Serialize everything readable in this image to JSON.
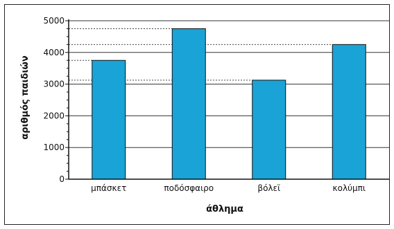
{
  "chart_data": {
    "type": "bar",
    "categories": [
      "μπάσκετ",
      "ποδόσφαιρο",
      "βόλεϊ",
      "κολύμπι"
    ],
    "values": [
      3750,
      4750,
      3125,
      4250
    ],
    "title": "",
    "xlabel": "άθλημα",
    "ylabel": "αριθμός παιδιών",
    "ylim": [
      0,
      5000
    ],
    "yticks": [
      "0",
      "1000",
      "2000",
      "3000",
      "4000",
      "5000"
    ],
    "grid": true,
    "bar_color": "#1aa3d6"
  }
}
